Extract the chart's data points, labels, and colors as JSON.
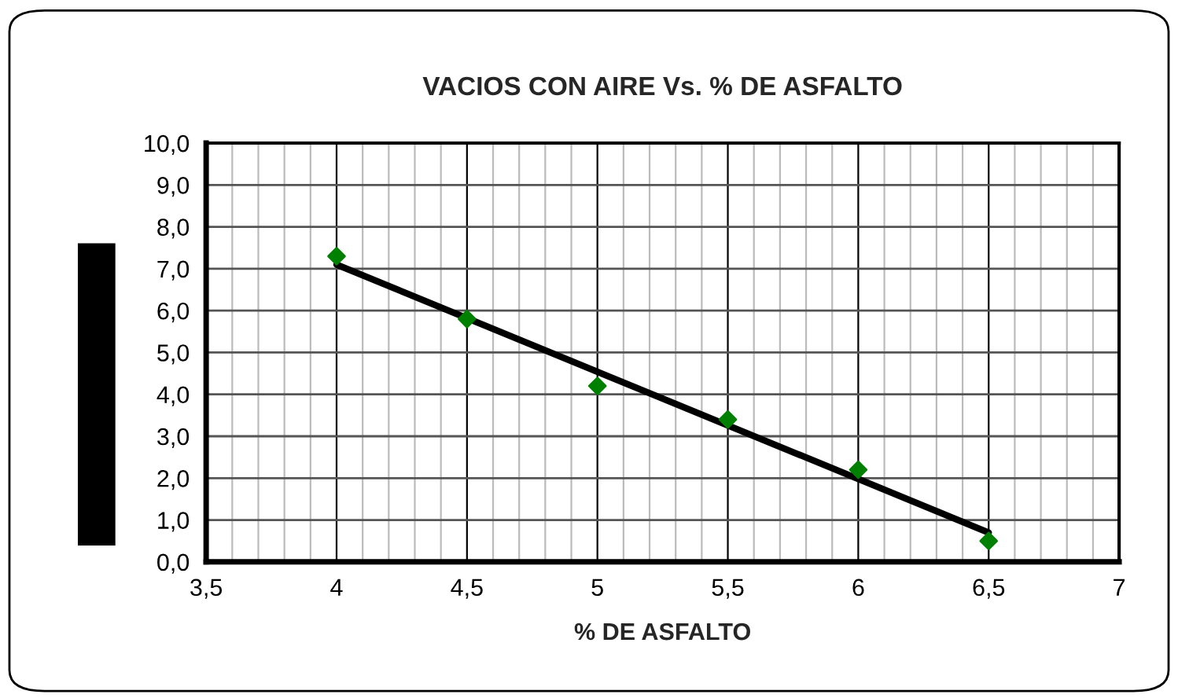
{
  "chart_data": {
    "type": "scatter",
    "title": "VACIOS CON AIRE Vs. % DE ASFALTO",
    "xlabel": "% DE ASFALTO",
    "series": [
      {
        "color": "#008000",
        "marker": "diamond",
        "x": [
          4,
          4.5,
          5,
          5.5,
          6,
          6.5
        ],
        "values": [
          7.3,
          5.8,
          4.2,
          3.4,
          2.2,
          0.5
        ]
      },
      {
        "type": "line",
        "color": "#000000",
        "marker": "none",
        "line_style": "solid",
        "x": [
          4,
          6.5
        ],
        "values": [
          7.1,
          0.7
        ]
      }
    ],
    "xlim": [
      3.5,
      7
    ],
    "ylim": [
      0,
      10
    ],
    "xticks": [
      {
        "value": 3.5,
        "label": "3,5"
      },
      4,
      {
        "value": 4.5,
        "label": "4,5"
      },
      5,
      {
        "value": 5.5,
        "label": "5,5"
      },
      6,
      {
        "value": 6.5,
        "label": "6,5"
      },
      7
    ],
    "yticks": [
      {
        "value": 0,
        "label": "0,0"
      },
      {
        "value": 1,
        "label": "1,0"
      },
      {
        "value": 2,
        "label": "2,0"
      },
      {
        "value": 3,
        "label": "3,0"
      },
      {
        "value": 4,
        "label": "4,0"
      },
      {
        "value": 5,
        "label": "5,0"
      },
      {
        "value": 6,
        "label": "6,0"
      },
      {
        "value": 7,
        "label": "7,0"
      },
      {
        "value": 8,
        "label": "8,0"
      },
      {
        "value": 9,
        "label": "9,0"
      },
      {
        "value": 10,
        "label": "10,0"
      }
    ],
    "grid": true,
    "legend": false
  }
}
